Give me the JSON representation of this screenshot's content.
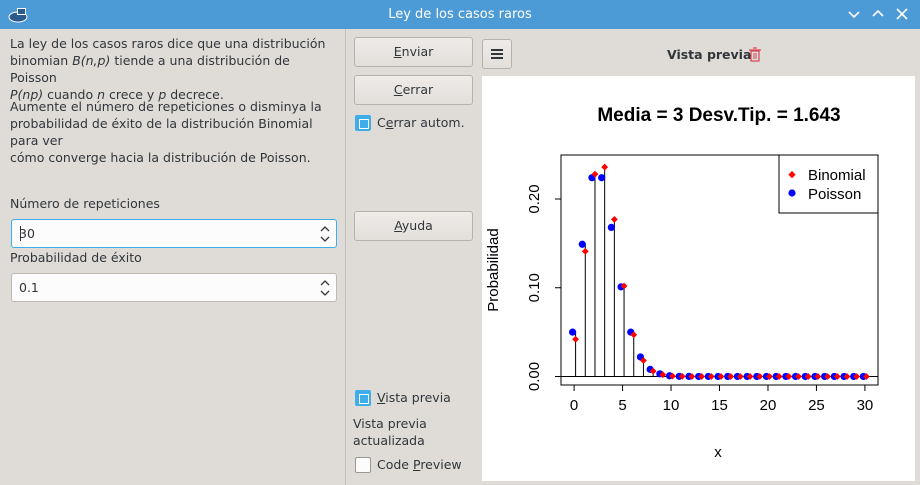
{
  "window": {
    "title": "Ley de los casos raros"
  },
  "description": {
    "p1_a": "La ley de los casos raros dice que una distribución",
    "p1_b1": "binomian ",
    "p1_b2": "B(n,p)",
    "p1_b3": " tiende a una distribución de Poisson",
    "p1_c1": "P(np)",
    "p1_c2": " cuando ",
    "p1_c3": "n",
    "p1_c4": " crece y ",
    "p1_c5": "p",
    "p1_c6": " decrece.",
    "p2_a": "Aumente el número de repeticiones o disminya la",
    "p2_b": "probabilidad de éxito de la distribución Binomial para ver",
    "p2_c": "cómo converge hacia la distribución de Poisson."
  },
  "fields": {
    "repeticiones_label": "Número de repeticiones",
    "repeticiones_value": "30",
    "probabilidad_label": "Probabilidad de éxito",
    "probabilidad_value": "0.1"
  },
  "buttons": {
    "enviar_u": "E",
    "enviar_rest": "nviar",
    "cerrar_u": "C",
    "cerrar_rest": "errar",
    "ayuda_u": "A",
    "ayuda_rest": "yuda"
  },
  "checks": {
    "cerrar_autom_a": "C",
    "cerrar_autom_u": "e",
    "cerrar_autom_b": "rrar autom.",
    "vista_previa_u": "V",
    "vista_previa_b": "ista previa",
    "code_preview_a": "Code ",
    "code_preview_u": "P",
    "code_preview_b": "review",
    "cerrar_autom_checked": true,
    "vista_previa_checked": true,
    "code_preview_checked": false
  },
  "status": {
    "line1": "Vista previa",
    "line2": "actualizada"
  },
  "preview": {
    "title": "Vista previa"
  },
  "colors": {
    "titlebar": "#4d9bd6",
    "accent": "#3daee9",
    "binomial": "#ff0000",
    "poisson": "#0000ff",
    "trash": "#da4453"
  },
  "icons": {
    "app": "app-icon",
    "minimize": "chevron-down-icon",
    "maximize": "chevron-up-icon",
    "close": "close-icon",
    "menu": "hamburger-menu-icon",
    "trash": "trash-icon",
    "spin": "spin-arrows-icon"
  },
  "chart_data": {
    "type": "scatter",
    "title": "Media = 3 Desv.Tip. = 1.643",
    "xlabel": "x",
    "ylabel": "Probabilidad",
    "xlim": [
      0,
      30
    ],
    "ylim": [
      0,
      0.24
    ],
    "xticks": [
      "0",
      "5",
      "10",
      "15",
      "20",
      "25",
      "30"
    ],
    "yticks": [
      "0.00",
      "0.10",
      "0.20"
    ],
    "legend_position": "top-right",
    "x": [
      0,
      1,
      2,
      3,
      4,
      5,
      6,
      7,
      8,
      9,
      10,
      11,
      12,
      13,
      14,
      15,
      16,
      17,
      18,
      19,
      20,
      21,
      22,
      23,
      24,
      25,
      26,
      27,
      28,
      29,
      30
    ],
    "series": [
      {
        "name": "Binomial",
        "color": "#ff0000",
        "marker": "diamond",
        "values": [
          0.042,
          0.141,
          0.228,
          0.236,
          0.177,
          0.102,
          0.047,
          0.018,
          0.006,
          0.002,
          0.0004,
          0.0001,
          0,
          0,
          0,
          0,
          0,
          0,
          0,
          0,
          0,
          0,
          0,
          0,
          0,
          0,
          0,
          0,
          0,
          0,
          0
        ]
      },
      {
        "name": "Poisson",
        "color": "#0000ff",
        "marker": "circle",
        "values": [
          0.05,
          0.149,
          0.224,
          0.224,
          0.168,
          0.101,
          0.05,
          0.022,
          0.008,
          0.003,
          0.0008,
          0.0002,
          0.0001,
          0,
          0,
          0,
          0,
          0,
          0,
          0,
          0,
          0,
          0,
          0,
          0,
          0,
          0,
          0,
          0,
          0,
          0
        ]
      }
    ]
  }
}
